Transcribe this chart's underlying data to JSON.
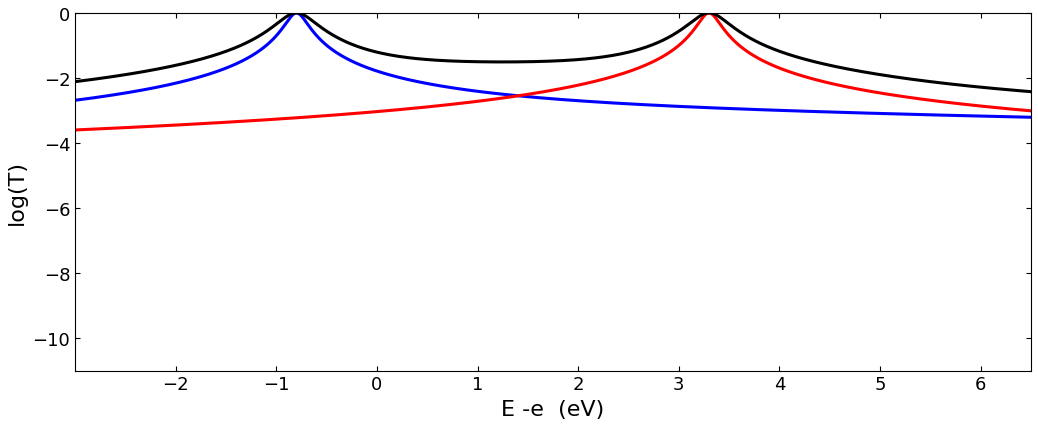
{
  "xmin": -3.0,
  "xmax": 6.5,
  "ymin": -11,
  "ymax": 0,
  "xlabel": "E -e  (eV)",
  "ylabel": "log(T)",
  "xlabel_fontsize": 16,
  "ylabel_fontsize": 16,
  "tick_fontsize": 13,
  "yticks": [
    0,
    -2,
    -4,
    -6,
    -8,
    -10
  ],
  "xticks": [
    -2,
    -1,
    0,
    1,
    2,
    3,
    4,
    5,
    6
  ],
  "line_width": 2.2,
  "bg_color": "#ffffff",
  "r1": -0.8,
  "r2": 3.3
}
